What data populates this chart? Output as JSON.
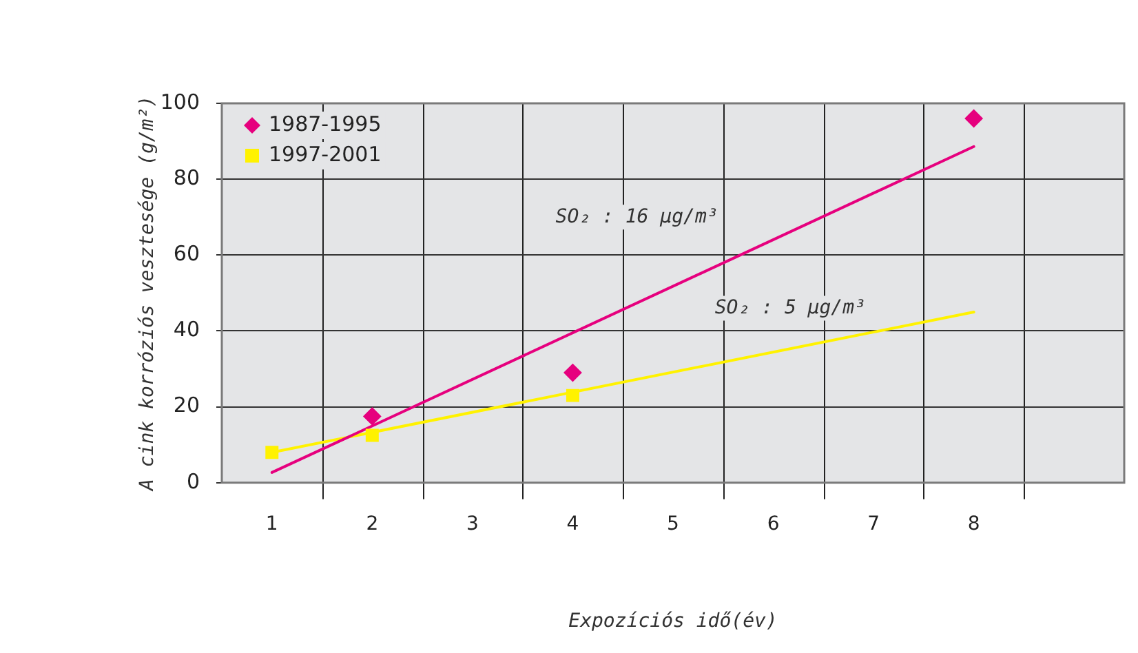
{
  "chart_data": {
    "type": "scatter",
    "xlabel": "Expozíciós idő(év)",
    "ylabel": "A cink korróziós vesztesége (g/m²)",
    "categories": [
      "1",
      "2",
      "3",
      "4",
      "5",
      "6",
      "7",
      "8",
      null
    ],
    "series": [
      {
        "name": "1987-1995",
        "color": "#e6007e",
        "marker": "diamond",
        "values": [
          null,
          17.5,
          null,
          29,
          null,
          null,
          null,
          96,
          null
        ]
      },
      {
        "name": "1997-2001",
        "color": "#fff200",
        "marker": "square",
        "values": [
          8,
          12.5,
          null,
          23,
          null,
          null,
          null,
          null,
          null
        ]
      },
      {
        "type": "line",
        "color": "#e6007e",
        "x": [
          "1",
          "8"
        ],
        "values": [
          2.7,
          88.6
        ]
      },
      {
        "type": "line",
        "color": "#fff200",
        "x": [
          "1",
          "8"
        ],
        "values": [
          8,
          45
        ]
      }
    ],
    "annotations": [
      "SO₂ : 16 µg/m³",
      "SO₂ : 5 µg/m³"
    ],
    "ylim": [
      0,
      100
    ],
    "yticks": [
      0,
      20,
      40,
      60,
      80,
      100
    ],
    "grid": true,
    "legend": "top left"
  }
}
